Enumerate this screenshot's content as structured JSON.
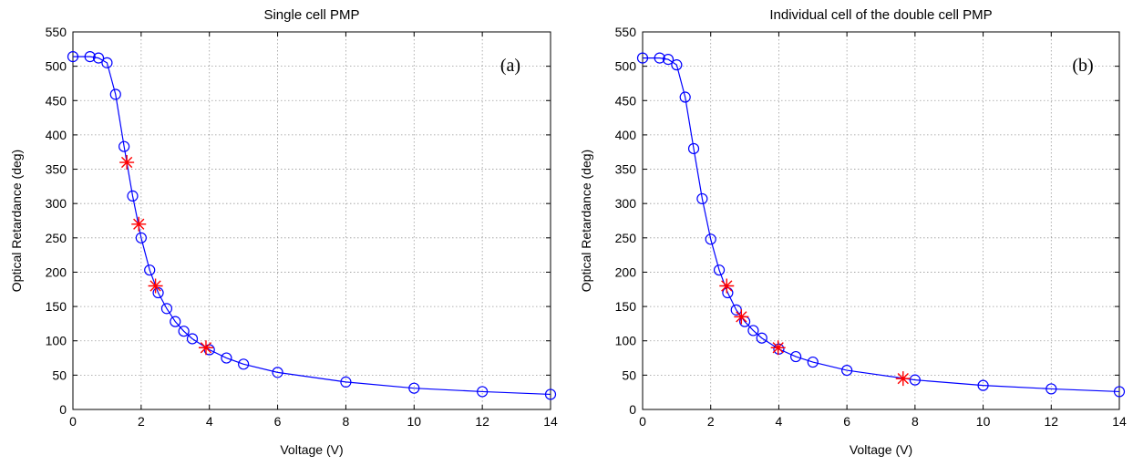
{
  "chart_data": [
    {
      "type": "line",
      "title": "Single cell PMP",
      "panel_label": "(a)",
      "xlabel": "Voltage (V)",
      "ylabel": "Optical Retardance (deg)",
      "xlim": [
        0,
        14
      ],
      "ylim": [
        0,
        550
      ],
      "xticks": [
        0,
        2,
        4,
        6,
        8,
        10,
        12,
        14
      ],
      "yticks": [
        0,
        50,
        100,
        150,
        200,
        250,
        300,
        350,
        400,
        450,
        500,
        550
      ],
      "grid": true,
      "series": [
        {
          "marker": "circle",
          "color": "#0000ff",
          "line": true,
          "x": [
            0,
            0.5,
            0.75,
            1.0,
            1.25,
            1.5,
            1.75,
            2.0,
            2.25,
            2.5,
            2.75,
            3.0,
            3.25,
            3.5,
            4.0,
            4.5,
            5.0,
            6.0,
            8.0,
            10.0,
            12.0,
            14.0
          ],
          "y": [
            514,
            514,
            512,
            505,
            459,
            383,
            311,
            250,
            203,
            170,
            147,
            128,
            114,
            103,
            87,
            75,
            66,
            54,
            40,
            31,
            26,
            22
          ]
        },
        {
          "marker": "asterisk",
          "color": "#ff0000",
          "line": false,
          "x": [
            1.58,
            1.93,
            2.42,
            3.9
          ],
          "y": [
            360,
            270,
            180,
            90
          ]
        }
      ]
    },
    {
      "type": "line",
      "title": "Individual cell of the double cell PMP",
      "panel_label": "(b)",
      "xlabel": "Voltage (V)",
      "ylabel": "Optical Retardance (deg)",
      "xlim": [
        0,
        14
      ],
      "ylim": [
        0,
        550
      ],
      "xticks": [
        0,
        2,
        4,
        6,
        8,
        10,
        12,
        14
      ],
      "yticks": [
        0,
        50,
        100,
        150,
        200,
        250,
        300,
        350,
        400,
        450,
        500,
        550
      ],
      "grid": true,
      "series": [
        {
          "marker": "circle",
          "color": "#0000ff",
          "line": true,
          "x": [
            0,
            0.5,
            0.75,
            1.0,
            1.25,
            1.5,
            1.75,
            2.0,
            2.25,
            2.5,
            2.75,
            3.0,
            3.25,
            3.5,
            4.0,
            4.5,
            5.0,
            6.0,
            8.0,
            10.0,
            12.0,
            14.0
          ],
          "y": [
            512,
            512,
            510,
            502,
            455,
            380,
            307,
            248,
            203,
            170,
            145,
            128,
            115,
            104,
            88,
            77,
            69,
            57,
            43,
            35,
            30,
            26
          ]
        },
        {
          "marker": "asterisk",
          "color": "#ff0000",
          "line": false,
          "x": [
            2.47,
            2.9,
            3.98,
            7.65
          ],
          "y": [
            180,
            135,
            90,
            45
          ]
        }
      ]
    }
  ]
}
